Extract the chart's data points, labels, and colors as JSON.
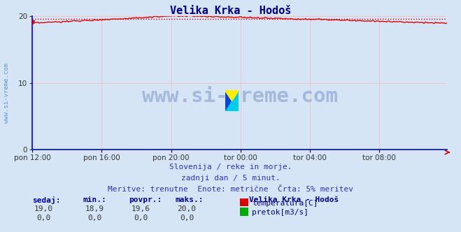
{
  "title": "Velika Krka - Hodoš",
  "title_color": "#000080",
  "bg_color": "#d5e5f5",
  "plot_bg_color": "#d5e5f5",
  "x_tick_labels": [
    "pon 12:00",
    "pon 16:00",
    "pon 20:00",
    "tor 00:00",
    "tor 04:00",
    "tor 08:00"
  ],
  "x_ticks_positions": [
    0,
    48,
    96,
    144,
    192,
    240
  ],
  "total_points": 288,
  "ylim": [
    0,
    20
  ],
  "yticks": [
    0,
    10,
    20
  ],
  "temp_color": "#dd0000",
  "flow_color": "#00aa00",
  "avg_line_color": "#cc0000",
  "grid_color": "#ffaaaa",
  "watermark": "www.si-vreme.com",
  "watermark_color": "#3355aa",
  "watermark_alpha": 0.3,
  "subtitle1": "Slovenija / reke in morje.",
  "subtitle2": "zadnji dan / 5 minut.",
  "subtitle3": "Meritve: trenutne  Enote: metrične  Črta: 5% meritev",
  "subtitle_color": "#3333aa",
  "legend_title": "Velika Krka - Hodoš",
  "legend_title_color": "#000080",
  "label_temp": "temperatura[C]",
  "label_flow": "pretok[m3/s]",
  "label_color": "#000080",
  "table_headers": [
    "sedaj:",
    "min.:",
    "povpr.:",
    "maks.:"
  ],
  "table_color": "#000099",
  "temp_vals": [
    "19,0",
    "18,9",
    "19,6",
    "20,0"
  ],
  "flow_vals": [
    "0,0",
    "0,0",
    "0,0",
    "0,0"
  ],
  "temp_avg": 19.6,
  "figsize": [
    6.59,
    3.32
  ],
  "dpi": 100,
  "sidebar_text": "www.si-vreme.com",
  "sidebar_color": "#4477bb"
}
